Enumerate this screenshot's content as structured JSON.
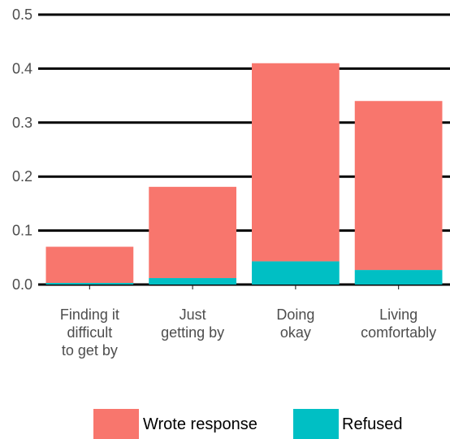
{
  "chart_data": {
    "type": "bar",
    "stacked": true,
    "categories": [
      [
        "Finding it",
        "difficult",
        "to get by"
      ],
      [
        "Just",
        "getting by"
      ],
      [
        "Doing",
        "okay"
      ],
      [
        "Living",
        "comfortably"
      ]
    ],
    "series": [
      {
        "name": "Refused",
        "color": "#00BFC4",
        "values": [
          0.003,
          0.012,
          0.043,
          0.027
        ]
      },
      {
        "name": "Wrote response",
        "color": "#F8766D",
        "values": [
          0.067,
          0.169,
          0.367,
          0.313
        ]
      }
    ],
    "ylim": [
      0,
      0.5
    ],
    "yticks": [
      "0.0",
      "0.1",
      "0.2",
      "0.3",
      "0.4",
      "0.5"
    ],
    "grid": true,
    "legend_position": "bottom",
    "legend_order": [
      "Wrote response",
      "Refused"
    ]
  }
}
